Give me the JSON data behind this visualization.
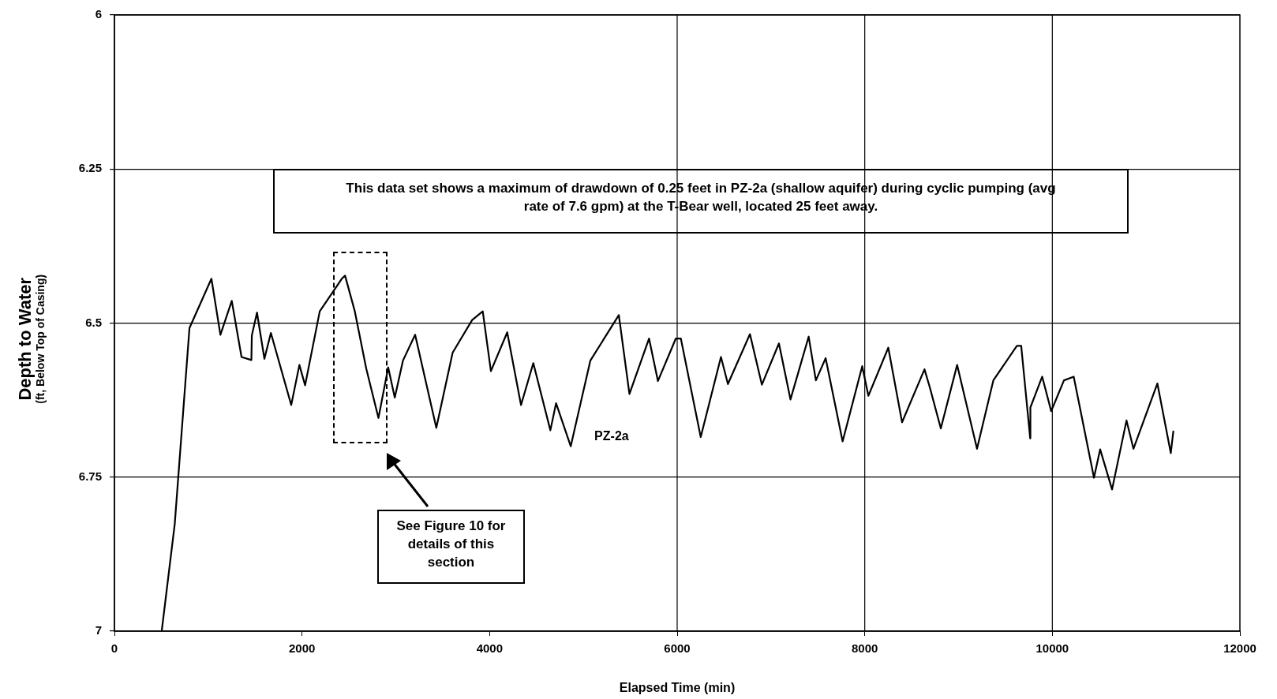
{
  "chart_data": {
    "type": "line",
    "xlabel": "Elapsed Time (min)",
    "ylabel": "Depth to Water (ft, Below Top of Casing)",
    "xlim": [
      0,
      12000
    ],
    "xticks": [
      0,
      2000,
      4000,
      6000,
      8000,
      10000,
      12000
    ],
    "ylim": [
      7,
      6
    ],
    "yticks": [
      6,
      6.25,
      6.5,
      6.75,
      7
    ],
    "grid": "y",
    "legend": false,
    "marker": "none",
    "line_style": "solid",
    "ref_lines": [
      {
        "axis": "x",
        "value": 6000,
        "color": "#000000"
      },
      {
        "axis": "x",
        "value": 8000,
        "color": "#000000"
      },
      {
        "axis": "x",
        "value": 10000,
        "color": "#000000"
      }
    ],
    "annotations": [
      "This data set shows a maximum of drawdown of 0.25 feet in PZ-2a (shallow aquifer) during cyclic pumping (avg rate of 7.6 gpm) at the T-Bear well, located 25 feet away.",
      "See Figure 10 for details of this section"
    ],
    "series": [
      {
        "name": "PZ-2a",
        "color": "#000000",
        "x": [
          504,
          643,
          800,
          1034,
          1130,
          1251,
          1355,
          1460,
          1465,
          1520,
          1599,
          1668,
          1885,
          1972,
          2033,
          2189,
          2424,
          2459,
          2563,
          2685,
          2815,
          2919,
          2989,
          3076,
          3206,
          3432,
          3606,
          3814,
          3927,
          4014,
          4188,
          4335,
          4466,
          4648,
          4709,
          4865,
          5074,
          5378,
          5491,
          5700,
          5795,
          5986,
          6039,
          6251,
          6467,
          6541,
          6776,
          6903,
          7085,
          7208,
          7402,
          7479,
          7583,
          7764,
          7973,
          8039,
          8251,
          8398,
          8637,
          8695,
          8811,
          8985,
          9197,
          9371,
          9622,
          9668,
          9764,
          9766,
          9892,
          9988,
          10124,
          10228,
          10444,
          10510,
          10637,
          10791,
          10865,
          11120,
          11263,
          11290
        ],
        "values": [
          7.0,
          6.826,
          6.508,
          6.428,
          6.519,
          6.464,
          6.555,
          6.56,
          6.52,
          6.483,
          6.558,
          6.516,
          6.633,
          6.568,
          6.601,
          6.481,
          6.428,
          6.423,
          6.481,
          6.574,
          6.654,
          6.572,
          6.621,
          6.561,
          6.519,
          6.67,
          6.548,
          6.495,
          6.481,
          6.578,
          6.515,
          6.633,
          6.565,
          6.674,
          6.63,
          6.7,
          6.561,
          6.487,
          6.615,
          6.525,
          6.594,
          6.525,
          6.525,
          6.685,
          6.555,
          6.599,
          6.518,
          6.6,
          6.533,
          6.624,
          6.522,
          6.593,
          6.557,
          6.692,
          6.57,
          6.618,
          6.54,
          6.661,
          6.575,
          6.605,
          6.671,
          6.568,
          6.704,
          6.593,
          6.537,
          6.537,
          6.687,
          6.637,
          6.587,
          6.643,
          6.593,
          6.587,
          6.751,
          6.705,
          6.77,
          6.658,
          6.704,
          6.598,
          6.711,
          6.676
        ]
      }
    ]
  }
}
